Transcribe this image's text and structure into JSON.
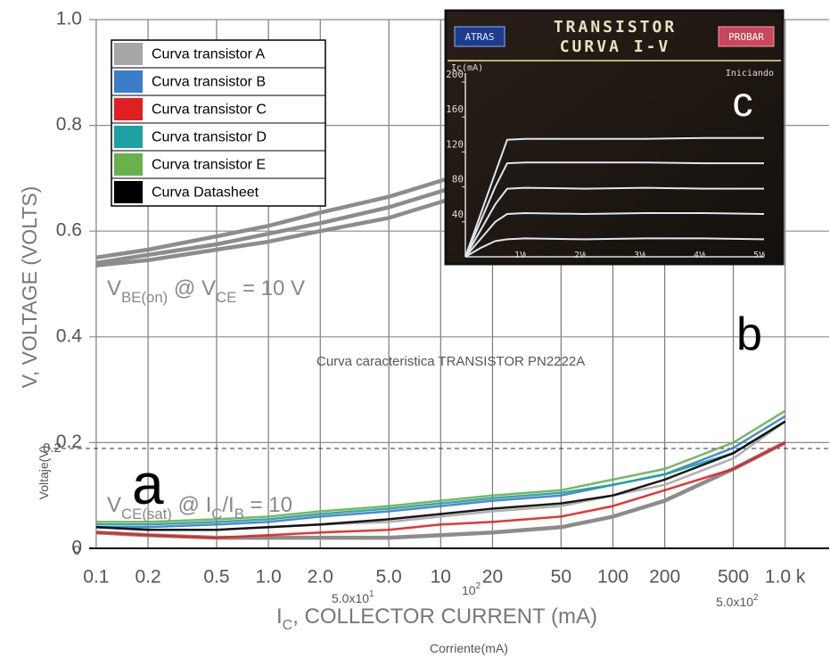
{
  "chart_data": [
    {
      "type": "line",
      "log_x": true,
      "grid": true,
      "legend": "upper left",
      "ylabel": "V, VOLTAGE (VOLTS)",
      "xlabel": [
        "I",
        "C",
        ", COLLECTOR CURRENT (mA)"
      ],
      "xlim": [
        0.091,
        1800
      ],
      "ylim": [
        0,
        1
      ],
      "xticks": [
        0.1,
        0.2,
        0.5,
        {
          "value": 1,
          "label": "1.0"
        },
        {
          "value": 2,
          "label": "2.0"
        },
        {
          "value": 5,
          "label": "5.0"
        },
        10,
        20,
        50,
        100,
        200,
        500,
        {
          "value": 1000,
          "label": "1.0 k"
        }
      ],
      "yticks": [
        0,
        0.2,
        0.4,
        0.6,
        0.8,
        {
          "value": 1,
          "label": "1.0"
        }
      ],
      "x": [
        0.1,
        0.2,
        0.5,
        1,
        2,
        5,
        10,
        20,
        50,
        100,
        200,
        500,
        1000
      ],
      "series": [
        {
          "color": "#8c8c8c",
          "values": [
            0.55,
            0.565,
            0.59,
            0.61,
            0.635,
            0.665,
            0.695,
            0.725,
            0.765,
            null,
            null,
            null,
            null
          ]
        },
        {
          "color": "#8c8c8c",
          "values": [
            0.54,
            0.555,
            0.575,
            0.595,
            0.615,
            0.645,
            0.675,
            0.705,
            0.745,
            null,
            null,
            null,
            null
          ]
        },
        {
          "color": "#8c8c8c",
          "values": [
            0.535,
            0.545,
            0.565,
            0.58,
            0.6,
            0.625,
            0.655,
            0.685,
            0.72,
            null,
            null,
            null,
            null
          ]
        },
        {
          "color": "#8c8c8c",
          "values": [
            0.03,
            0.025,
            0.02,
            0.02,
            0.02,
            0.02,
            0.025,
            0.03,
            0.04,
            0.06,
            0.09,
            0.15,
            0.2
          ]
        },
        {
          "name": "Curva transistor A",
          "color": "#a6a6a6",
          "values": [
            0.04,
            0.035,
            0.035,
            0.04,
            0.045,
            0.05,
            0.06,
            0.07,
            0.08,
            0.1,
            0.12,
            0.17,
            0.24
          ]
        },
        {
          "name": "Curva transistor B",
          "color": "#3a7dc9",
          "values": [
            0.04,
            0.04,
            0.045,
            0.05,
            0.06,
            0.07,
            0.08,
            0.09,
            0.1,
            0.12,
            0.14,
            0.19,
            0.25
          ]
        },
        {
          "name": "Curva transistor C",
          "color": "#e02020",
          "values": [
            0.03,
            0.025,
            0.02,
            0.025,
            0.03,
            0.035,
            0.045,
            0.05,
            0.06,
            0.08,
            0.11,
            0.15,
            0.2
          ]
        },
        {
          "name": "Curva transistor D",
          "color": "#1fa0a0",
          "values": [
            0.045,
            0.045,
            0.05,
            0.055,
            0.065,
            0.075,
            0.085,
            0.095,
            0.105,
            0.12,
            0.14,
            0.18,
            0.24
          ]
        },
        {
          "name": "Curva transistor E",
          "color": "#6ab04c",
          "values": [
            0.05,
            0.05,
            0.055,
            0.06,
            0.07,
            0.08,
            0.09,
            0.1,
            0.11,
            0.13,
            0.15,
            0.2,
            0.26
          ]
        },
        {
          "name": "Curva Datasheet",
          "color": "#000000",
          "values": [
            0.04,
            0.035,
            0.035,
            0.04,
            0.045,
            0.055,
            0.065,
            0.075,
            0.085,
            0.1,
            0.13,
            0.18,
            0.24
          ]
        }
      ],
      "annotations": [
        {
          "parts": [
            "V",
            "BE(on)",
            " @ V",
            "CE",
            " = 10 V"
          ]
        },
        {
          "parts": [
            "V",
            "CE(sat)",
            " @ I",
            "C",
            "/I",
            "B",
            " = 10"
          ]
        },
        {
          "parts": [
            "a"
          ]
        },
        {
          "parts": [
            "b"
          ]
        },
        {
          "parts": [
            "Curva caracteristica TRANSISTOR PN2222A"
          ]
        },
        {
          "parts": [
            "Voltaje(V)"
          ]
        },
        {
          "parts": [
            "Corriente(mA)"
          ]
        },
        {
          "parts": [
            "5.0x10",
            "1"
          ]
        },
        {
          "parts": [
            "10",
            "2"
          ]
        },
        {
          "parts": [
            "5.0x10",
            "2"
          ]
        },
        {
          "parts": [
            "0.2"
          ]
        },
        {
          "parts": [
            "0"
          ]
        }
      ]
    },
    {
      "type": "line",
      "title": [
        "TRANSISTOR",
        "CURVA I-V"
      ],
      "buttons": [
        "ATRAS",
        "PROBAR"
      ],
      "status": "Iniciando",
      "ylabel": "Ic(mA)",
      "label": "c",
      "xlim": [
        0,
        5
      ],
      "ylim": [
        0,
        200
      ],
      "xticks": [
        {
          "value": 1,
          "label": "1V"
        },
        {
          "value": 2,
          "label": "2V"
        },
        {
          "value": 3,
          "label": "3V"
        },
        {
          "value": 4,
          "label": "4V"
        },
        {
          "value": 5,
          "label": "5V"
        }
      ],
      "yticks": [
        40,
        80,
        120,
        160,
        200
      ],
      "x": [
        0,
        0.25,
        0.5,
        0.7,
        1,
        2,
        3,
        4,
        5
      ],
      "series": [
        {
          "color": "#dfe6ee",
          "values": [
            0,
            48,
            96,
            134,
            135,
            135,
            135,
            136,
            136
          ]
        },
        {
          "color": "#dfe6ee",
          "values": [
            0,
            40,
            80,
            107,
            108,
            108,
            108,
            107,
            107
          ]
        },
        {
          "color": "#dfe6ee",
          "values": [
            0,
            30,
            60,
            78,
            79,
            78,
            79,
            78,
            78
          ]
        },
        {
          "color": "#dfe6ee",
          "values": [
            0,
            20,
            40,
            49,
            50,
            49,
            50,
            50,
            49
          ]
        },
        {
          "color": "#dfe6ee",
          "values": [
            0,
            10,
            18,
            20,
            21,
            20,
            21,
            21,
            20
          ]
        }
      ]
    }
  ]
}
